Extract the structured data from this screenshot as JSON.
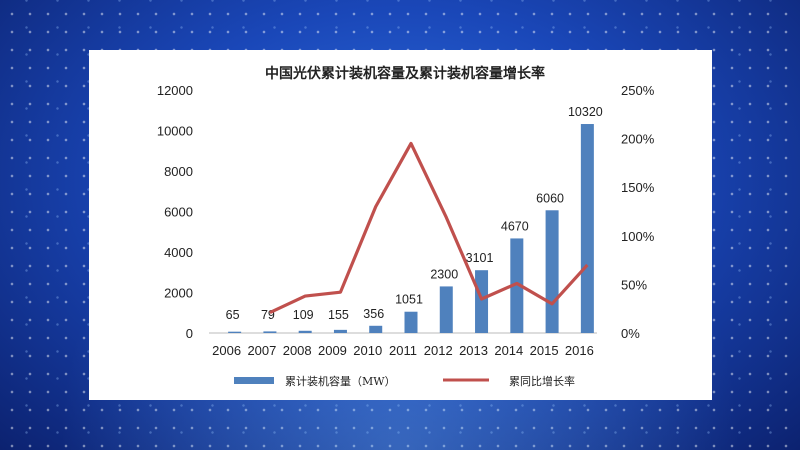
{
  "chart_data": {
    "type": "bar",
    "title": "中国光伏累计装机容量及累计装机容量增长率",
    "categories": [
      "2006",
      "2007",
      "2008",
      "2009",
      "2010",
      "2011",
      "2012",
      "2013",
      "2014",
      "2015",
      "2016"
    ],
    "series": [
      {
        "name": "累计装机容量（MW）",
        "type": "bar",
        "axis": "left",
        "color": "#4f81bd",
        "values": [
          65,
          79,
          109,
          155,
          356,
          1051,
          2300,
          3101,
          4670,
          6060,
          10320
        ],
        "labels": [
          "65",
          "79",
          "109",
          "155",
          "356",
          "1051",
          "2300",
          "3101",
          "4670",
          "6060",
          "10320"
        ]
      },
      {
        "name": "累同比增长率",
        "type": "line",
        "axis": "right",
        "color": "#c0504d",
        "values": [
          null,
          21,
          38,
          42,
          130,
          195,
          119,
          35,
          51,
          30,
          70
        ]
      }
    ],
    "ylim_left": [
      0,
      12000
    ],
    "yticks_left": [
      "0",
      "2000",
      "4000",
      "6000",
      "8000",
      "10000",
      "12000"
    ],
    "ylim_right": [
      0,
      250
    ],
    "yticks_right": [
      "0%",
      "50%",
      "100%",
      "150%",
      "200%",
      "250%"
    ],
    "grid": false,
    "legend_position": "bottom"
  }
}
